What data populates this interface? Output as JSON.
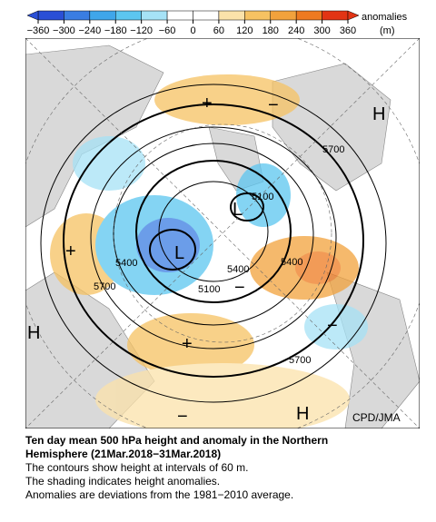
{
  "colorbar": {
    "ticks": [
      {
        "value": -360,
        "label": "−360"
      },
      {
        "value": -300,
        "label": "−300"
      },
      {
        "value": -240,
        "label": "−240"
      },
      {
        "value": -180,
        "label": "−180"
      },
      {
        "value": -120,
        "label": "−120"
      },
      {
        "value": -60,
        "label": "−60"
      },
      0,
      60,
      120,
      180,
      240,
      300,
      360
    ],
    "colors": [
      "#2a4fd6",
      "#3a7de2",
      "#3fa6ea",
      "#5cc6f0",
      "#a6e2f6",
      "#ffffff",
      "#ffffff",
      "#fbe2aa",
      "#f6c262",
      "#f2a23c",
      "#ee7a20",
      "#e23414"
    ],
    "title": "anomalies",
    "unit": "(m)"
  },
  "map": {
    "contour_labels": [
      "5700",
      "5100",
      "5400",
      "5400",
      "5700",
      "5100",
      "5400",
      "5700"
    ],
    "highs": [
      "H",
      "H",
      "H"
    ],
    "lows": [
      "L",
      "L"
    ],
    "plus": [
      "+",
      "+",
      "+"
    ],
    "minus": [
      "−",
      "−",
      "−",
      "−"
    ],
    "credit": "CPD/JMA"
  },
  "caption": {
    "title_line1": "Ten day mean 500 hPa height and anomaly in the Northern",
    "title_line2": "Hemisphere (21Mar.2018−31Mar.2018)",
    "lines": [
      "The contours show height at intervals of 60 m.",
      "The shading indicates height anomalies.",
      "Anomalies are deviations from the 1981−2010 average."
    ]
  }
}
